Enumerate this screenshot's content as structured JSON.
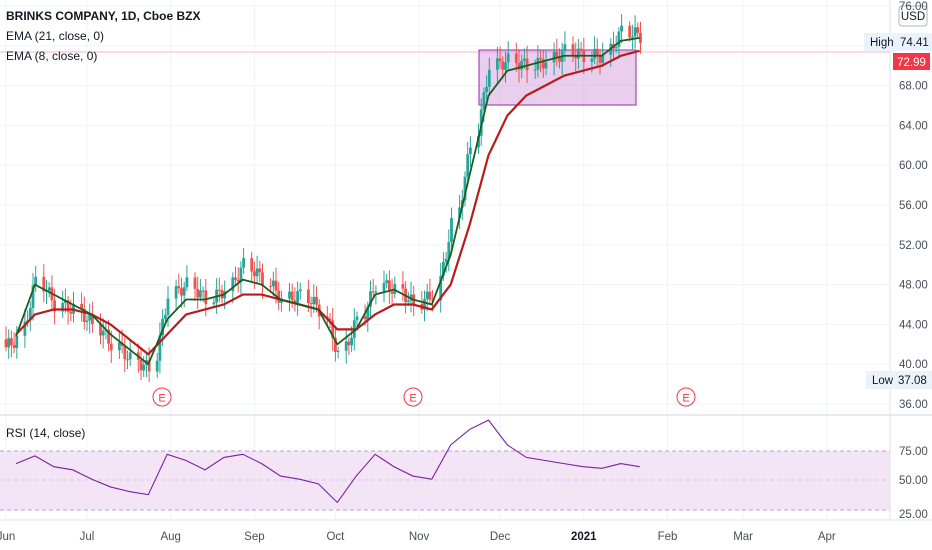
{
  "header": {
    "title": "BRINKS COMPANY, 1D, Cboe BZX",
    "indicator1": "EMA (21, close, 0)",
    "indicator2": "EMA (8, close, 0)",
    "currency": "USD"
  },
  "price_axis": {
    "ticks": [
      "76.00",
      "72.00",
      "68.00",
      "64.00",
      "60.00",
      "56.00",
      "52.00",
      "48.00",
      "44.00",
      "40.00",
      "36.00"
    ],
    "high_label": "High",
    "high_value": "74.41",
    "last_value": "72.99",
    "low_label": "Low",
    "low_value": "37.08"
  },
  "rsi": {
    "title": "RSI (14, close)",
    "ticks": [
      "75.00",
      "50.00",
      "25.00"
    ]
  },
  "time_axis": {
    "months": [
      "Jun",
      "Jul",
      "Aug",
      "Sep",
      "Oct",
      "Nov",
      "Dec",
      "2021",
      "Feb",
      "Mar",
      "Apr"
    ]
  },
  "earnings_marker": "E",
  "colors": {
    "up": "#26a69a",
    "down": "#ef5350",
    "ema_fast": "#1b5e20",
    "ema_slow": "#b71c1c",
    "rsi_line": "#7b1fa2",
    "rsi_band": "#f3e5f5",
    "box": "#ce93d8",
    "last_price": "#f23645"
  },
  "chart_data": {
    "type": "candlestick",
    "title": "BRINKS COMPANY, 1D, Cboe BZX",
    "ylim": [
      36,
      76
    ],
    "x": [
      "2020-06-01",
      "2020-06-08",
      "2020-06-15",
      "2020-06-22",
      "2020-06-29",
      "2020-07-06",
      "2020-07-13",
      "2020-07-20",
      "2020-07-27",
      "2020-08-03",
      "2020-08-10",
      "2020-08-17",
      "2020-08-24",
      "2020-08-31",
      "2020-09-07",
      "2020-09-14",
      "2020-09-21",
      "2020-09-28",
      "2020-10-05",
      "2020-10-12",
      "2020-10-19",
      "2020-10-26",
      "2020-11-02",
      "2020-11-09",
      "2020-11-16",
      "2020-11-23",
      "2020-11-30",
      "2020-12-07",
      "2020-12-14",
      "2020-12-21",
      "2020-12-28",
      "2021-01-04",
      "2021-01-11",
      "2021-01-18"
    ],
    "close": [
      42.5,
      48.5,
      46.0,
      45.5,
      44.0,
      42.0,
      40.5,
      39.5,
      47.0,
      48.0,
      46.5,
      47.5,
      50.0,
      48.5,
      46.5,
      47.0,
      45.5,
      41.0,
      44.5,
      48.0,
      47.5,
      46.0,
      47.0,
      54.0,
      62.0,
      70.0,
      70.5,
      70.0,
      70.5,
      71.5,
      71.0,
      71.0,
      73.5,
      73.0
    ],
    "series": [
      {
        "name": "EMA (21, close, 0)",
        "values": [
          43.0,
          45.0,
          45.5,
          45.5,
          45.0,
          44.0,
          42.5,
          41.0,
          43.0,
          45.0,
          45.5,
          46.0,
          47.0,
          47.0,
          46.5,
          46.0,
          45.5,
          43.5,
          43.5,
          45.0,
          46.0,
          46.0,
          45.5,
          48.0,
          54.0,
          61.0,
          65.0,
          67.0,
          68.0,
          69.0,
          69.5,
          70.0,
          71.0,
          71.5
        ]
      },
      {
        "name": "EMA (8, close, 0)",
        "values": [
          42.8,
          48.0,
          47.0,
          46.0,
          45.0,
          43.0,
          41.5,
          40.0,
          44.5,
          46.5,
          46.5,
          47.0,
          48.5,
          48.0,
          46.5,
          46.0,
          45.5,
          42.0,
          43.5,
          47.0,
          47.5,
          46.5,
          46.0,
          51.0,
          59.0,
          67.0,
          69.5,
          70.0,
          70.5,
          71.0,
          71.0,
          71.0,
          72.5,
          72.8
        ]
      }
    ],
    "rsi": {
      "name": "RSI (14, close)",
      "ylim": [
        25,
        90
      ],
      "values": [
        60,
        65,
        58,
        56,
        50,
        45,
        42,
        40,
        66,
        62,
        56,
        64,
        66,
        60,
        52,
        50,
        47,
        35,
        52,
        66,
        58,
        52,
        50,
        72,
        82,
        88,
        72,
        64,
        62,
        60,
        58,
        57,
        60,
        58
      ]
    },
    "high": 74.41,
    "low": 37.08,
    "last": 72.99,
    "rsi_band": [
      30,
      70
    ],
    "xlabel": "",
    "ylabel": ""
  }
}
